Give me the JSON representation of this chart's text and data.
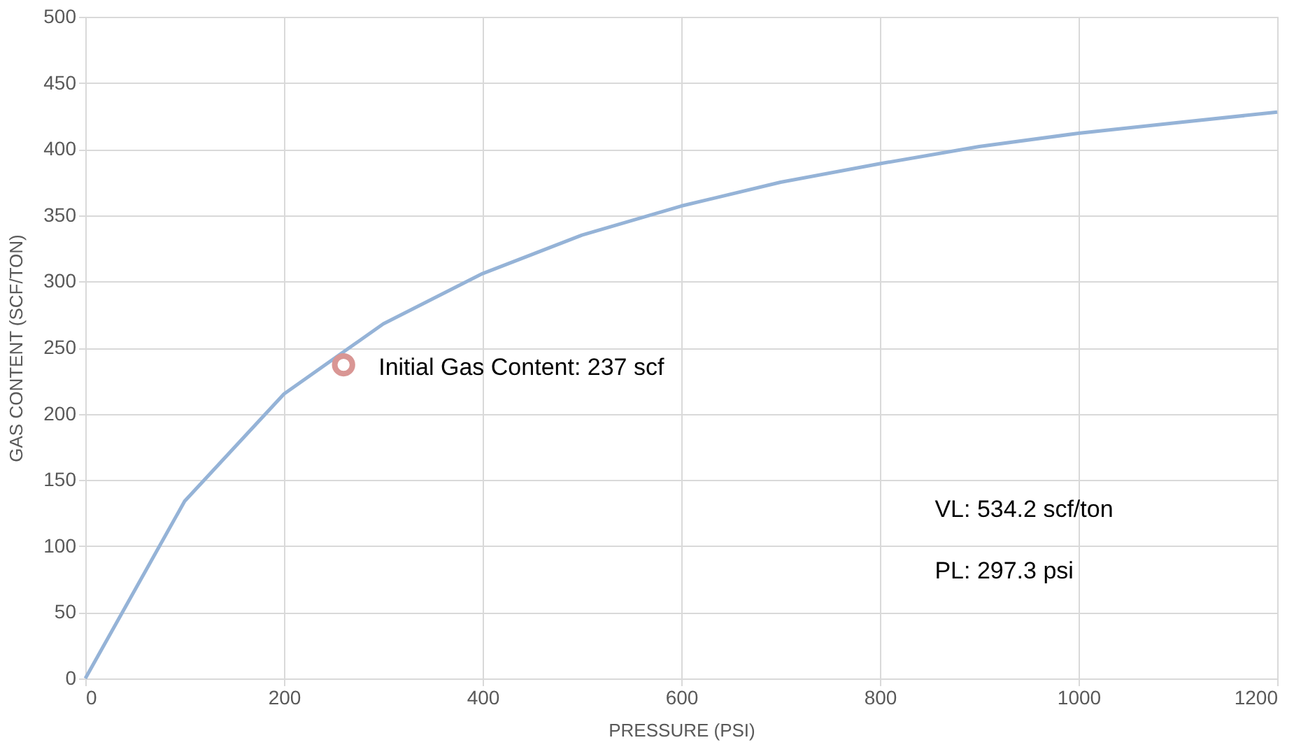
{
  "chart_data": {
    "type": "line",
    "xlabel": "PRESSURE (PSI)",
    "ylabel": "GAS CONTENT (SCF/TON)",
    "xlim": [
      0,
      1200
    ],
    "xticks": [
      0,
      200,
      400,
      600,
      800,
      1000,
      1200
    ],
    "ylim": [
      0,
      500
    ],
    "yticks": [
      0,
      50,
      100,
      150,
      200,
      250,
      300,
      350,
      400,
      450,
      500
    ],
    "grid": true,
    "series": [
      {
        "type": "line",
        "color": "#95b3d7",
        "line_style": "solid",
        "x": [
          0,
          100,
          200,
          300,
          400,
          500,
          600,
          700,
          800,
          900,
          1000,
          1100,
          1200
        ],
        "values": [
          0,
          134,
          215,
          268,
          306,
          335,
          357,
          375,
          389,
          402,
          412,
          420,
          428
        ]
      },
      {
        "type": "scatter",
        "color": "#d99694",
        "marker": "circle",
        "x": [
          260
        ],
        "values": [
          237
        ]
      }
    ],
    "annotations": [
      {
        "text": "Initial Gas Content: 237 scf",
        "x": 260,
        "y": 237
      },
      "VL: 534.2 scf/ton",
      "PL: 297.3 psi"
    ]
  }
}
